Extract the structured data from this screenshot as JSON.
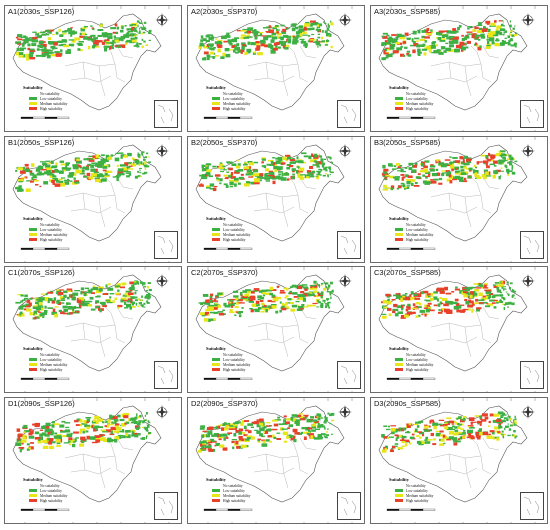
{
  "panels": [
    {
      "title": "A1(2030s_SSP126)"
    },
    {
      "title": "A2(2030s_SSP370)"
    },
    {
      "title": "A3(2030s_SSP585)"
    },
    {
      "title": "B1(2050s_SSP126)"
    },
    {
      "title": "B2(2050s_SSP370)"
    },
    {
      "title": "B3(2050s_SSP585)"
    },
    {
      "title": "C1(2070s_SSP126)"
    },
    {
      "title": "C2(2070s_SSP370)"
    },
    {
      "title": "C3(2070s_SSP585)"
    },
    {
      "title": "D1(2090s_SSP126)"
    },
    {
      "title": "D2(2090s_SSP370)"
    },
    {
      "title": "D3(2090s_SSP585)"
    }
  ],
  "legend": {
    "title": "Suitability",
    "items": [
      {
        "label": "No suitability",
        "color": "#ffffff"
      },
      {
        "label": "Low suitability",
        "color": "#3cb043"
      },
      {
        "label": "Medium suitability",
        "color": "#e6e619"
      },
      {
        "label": "High suitability",
        "color": "#e8412b"
      }
    ]
  },
  "colors": {
    "border": "#6b6b6b",
    "outline": "#555555",
    "low": "#3cb043",
    "medium": "#e6e619",
    "high": "#e8412b"
  },
  "icons": [
    "compass-icon",
    "scale-bar",
    "south-china-sea-inset"
  ]
}
